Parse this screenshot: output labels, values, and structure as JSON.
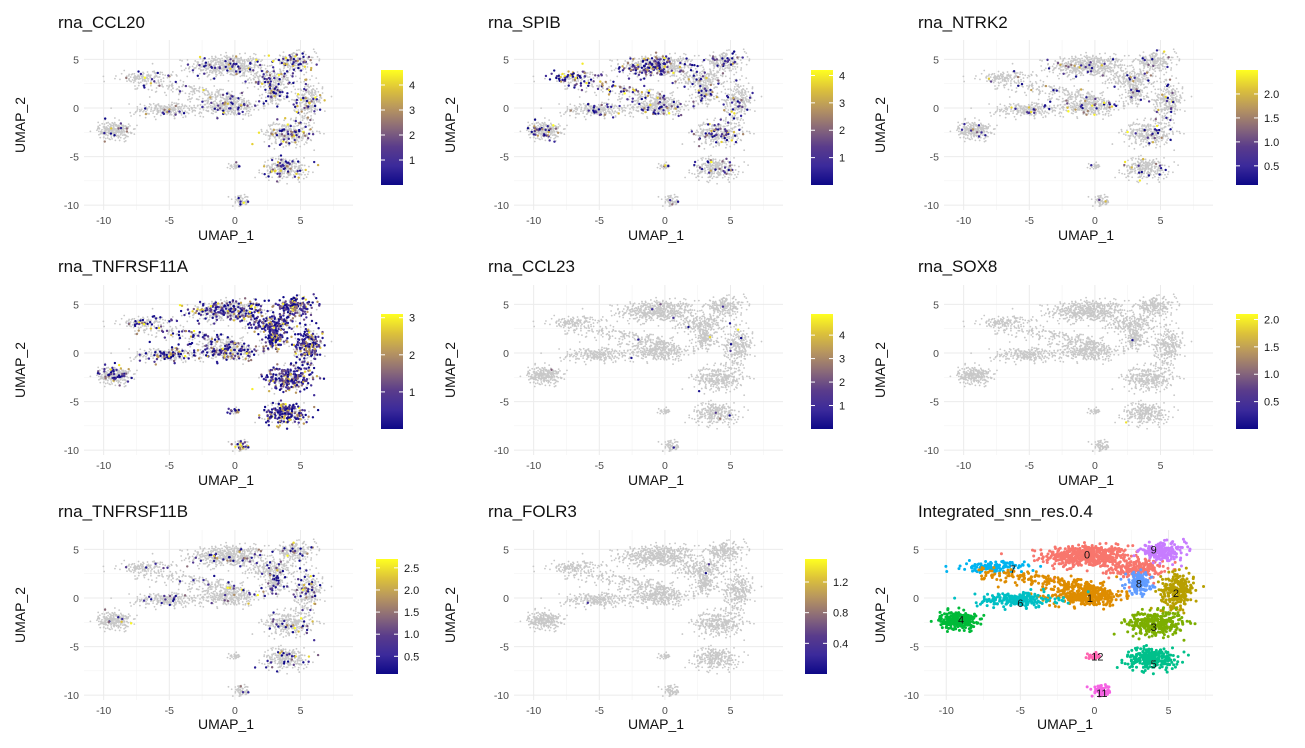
{
  "chart_data": [
    {
      "type": "scatter",
      "title": "rna_CCL20",
      "xlabel": "UMAP_1",
      "ylabel": "UMAP_2",
      "xlim": [
        -11.5,
        9
      ],
      "ylim": [
        -10.5,
        7
      ],
      "xticks": [
        -10,
        -5,
        0,
        5
      ],
      "yticks": [
        -10,
        -5,
        0,
        5
      ],
      "colorbar": {
        "min": 0,
        "max": 4.6,
        "ticks": [
          1,
          2,
          3,
          4
        ]
      },
      "expr_density": 0.07,
      "expr_bias": "east"
    },
    {
      "type": "scatter",
      "title": "rna_SPIB",
      "xlabel": "UMAP_1",
      "ylabel": "UMAP_2",
      "xlim": [
        -11.5,
        9
      ],
      "ylim": [
        -10.5,
        7
      ],
      "xticks": [
        -10,
        -5,
        0,
        5
      ],
      "yticks": [
        -10,
        -5,
        0,
        5
      ],
      "colorbar": {
        "min": 0,
        "max": 4.2,
        "ticks": [
          1,
          2,
          3,
          4
        ]
      },
      "expr_density": 0.12,
      "expr_bias": "spib"
    },
    {
      "type": "scatter",
      "title": "rna_NTRK2",
      "xlabel": "UMAP_1",
      "ylabel": "UMAP_2",
      "xlim": [
        -11.5,
        9
      ],
      "ylim": [
        -10.5,
        7
      ],
      "xticks": [
        -10,
        -5,
        0,
        5
      ],
      "yticks": [
        -10,
        -5,
        0,
        5
      ],
      "colorbar": {
        "min": 0.1,
        "max": 2.5,
        "ticks": [
          0.5,
          1.0,
          1.5,
          2.0
        ]
      },
      "expr_density": 0.035,
      "expr_bias": "mid"
    },
    {
      "type": "scatter",
      "title": "rna_TNFRSF11A",
      "xlabel": "UMAP_1",
      "ylabel": "UMAP_2",
      "xlim": [
        -11.5,
        9
      ],
      "ylim": [
        -10.5,
        7
      ],
      "xticks": [
        -10,
        -5,
        0,
        5
      ],
      "yticks": [
        -10,
        -5,
        0,
        5
      ],
      "colorbar": {
        "min": 0,
        "max": 3.1,
        "ticks": [
          1,
          2,
          3
        ]
      },
      "expr_density": 0.3,
      "expr_bias": "east"
    },
    {
      "type": "scatter",
      "title": "rna_CCL23",
      "xlabel": "UMAP_1",
      "ylabel": "UMAP_2",
      "xlim": [
        -11.5,
        9
      ],
      "ylim": [
        -10.5,
        7
      ],
      "xticks": [
        -10,
        -5,
        0,
        5
      ],
      "yticks": [
        -10,
        -5,
        0,
        5
      ],
      "colorbar": {
        "min": 0,
        "max": 4.9,
        "ticks": [
          1,
          2,
          3,
          4
        ]
      },
      "expr_density": 0.006,
      "expr_bias": "none"
    },
    {
      "type": "scatter",
      "title": "rna_SOX8",
      "xlabel": "UMAP_1",
      "ylabel": "UMAP_2",
      "xlim": [
        -11.5,
        9
      ],
      "ylim": [
        -10.5,
        7
      ],
      "xticks": [
        -10,
        -5,
        0,
        5
      ],
      "yticks": [
        -10,
        -5,
        0,
        5
      ],
      "colorbar": {
        "min": 0,
        "max": 2.1,
        "ticks": [
          0.5,
          1.0,
          1.5,
          2.0
        ]
      },
      "expr_density": 0.0008,
      "expr_bias": "none"
    },
    {
      "type": "scatter",
      "title": "rna_TNFRSF11B",
      "xlabel": "UMAP_1",
      "ylabel": "UMAP_2",
      "xlim": [
        -11.5,
        9
      ],
      "ylim": [
        -10.5,
        7
      ],
      "xticks": [
        -10,
        -5,
        0,
        5
      ],
      "yticks": [
        -10,
        -5,
        0,
        5
      ],
      "colorbar": {
        "min": 0.1,
        "max": 2.7,
        "ticks": [
          0.5,
          1.0,
          1.5,
          2.0,
          2.5
        ]
      },
      "expr_density": 0.05,
      "expr_bias": "east"
    },
    {
      "type": "scatter",
      "title": "rna_FOLR3",
      "xlabel": "UMAP_1",
      "ylabel": "UMAP_2",
      "xlim": [
        -11.5,
        9
      ],
      "ylim": [
        -10.5,
        7
      ],
      "xticks": [
        -10,
        -5,
        0,
        5
      ],
      "yticks": [
        -10,
        -5,
        0,
        5
      ],
      "colorbar": {
        "min": 0,
        "max": 1.5,
        "ticks": [
          0.4,
          0.8,
          1.2
        ]
      },
      "expr_density": 0.0006,
      "expr_bias": "none"
    },
    {
      "type": "scatter",
      "title": "Integrated_snn_res.0.4",
      "xlabel": "UMAP_1",
      "ylabel": "UMAP_2",
      "xlim": [
        -11.5,
        8
      ],
      "ylim": [
        -10.5,
        7
      ],
      "xticks": [
        -10,
        -5,
        0,
        5
      ],
      "yticks": [
        -10,
        -5,
        0,
        5
      ],
      "clusters": [
        {
          "id": "0",
          "x": -0.5,
          "y": 4.5,
          "color": "#F8766D"
        },
        {
          "id": "1",
          "x": -0.3,
          "y": 0.0,
          "color": "#DE8C00"
        },
        {
          "id": "2",
          "x": 5.5,
          "y": 0.5,
          "color": "#B79F00"
        },
        {
          "id": "3",
          "x": 4.0,
          "y": -3.0,
          "color": "#7CAE00"
        },
        {
          "id": "4",
          "x": -9.0,
          "y": -2.2,
          "color": "#00BA38"
        },
        {
          "id": "5",
          "x": 4.0,
          "y": -6.8,
          "color": "#00C08B"
        },
        {
          "id": "6",
          "x": -5.0,
          "y": -0.5,
          "color": "#00BFC4"
        },
        {
          "id": "7",
          "x": -5.5,
          "y": 3.0,
          "color": "#00B4F0"
        },
        {
          "id": "8",
          "x": 3.0,
          "y": 1.5,
          "color": "#619CFF"
        },
        {
          "id": "9",
          "x": 4.0,
          "y": 5.0,
          "color": "#C77CFF"
        },
        {
          "id": "11",
          "x": 0.5,
          "y": -9.8,
          "color": "#F564E3"
        },
        {
          "id": "12",
          "x": 0.2,
          "y": -6.0,
          "color": "#FF64B0"
        }
      ]
    }
  ],
  "colors": {
    "background_points": "#c8c8c8",
    "gradient": [
      "#0D0887",
      "#3B2A9B",
      "#5A3C8B",
      "#8A6A79",
      "#B7955F",
      "#DDC23A",
      "#FFFF20"
    ]
  }
}
